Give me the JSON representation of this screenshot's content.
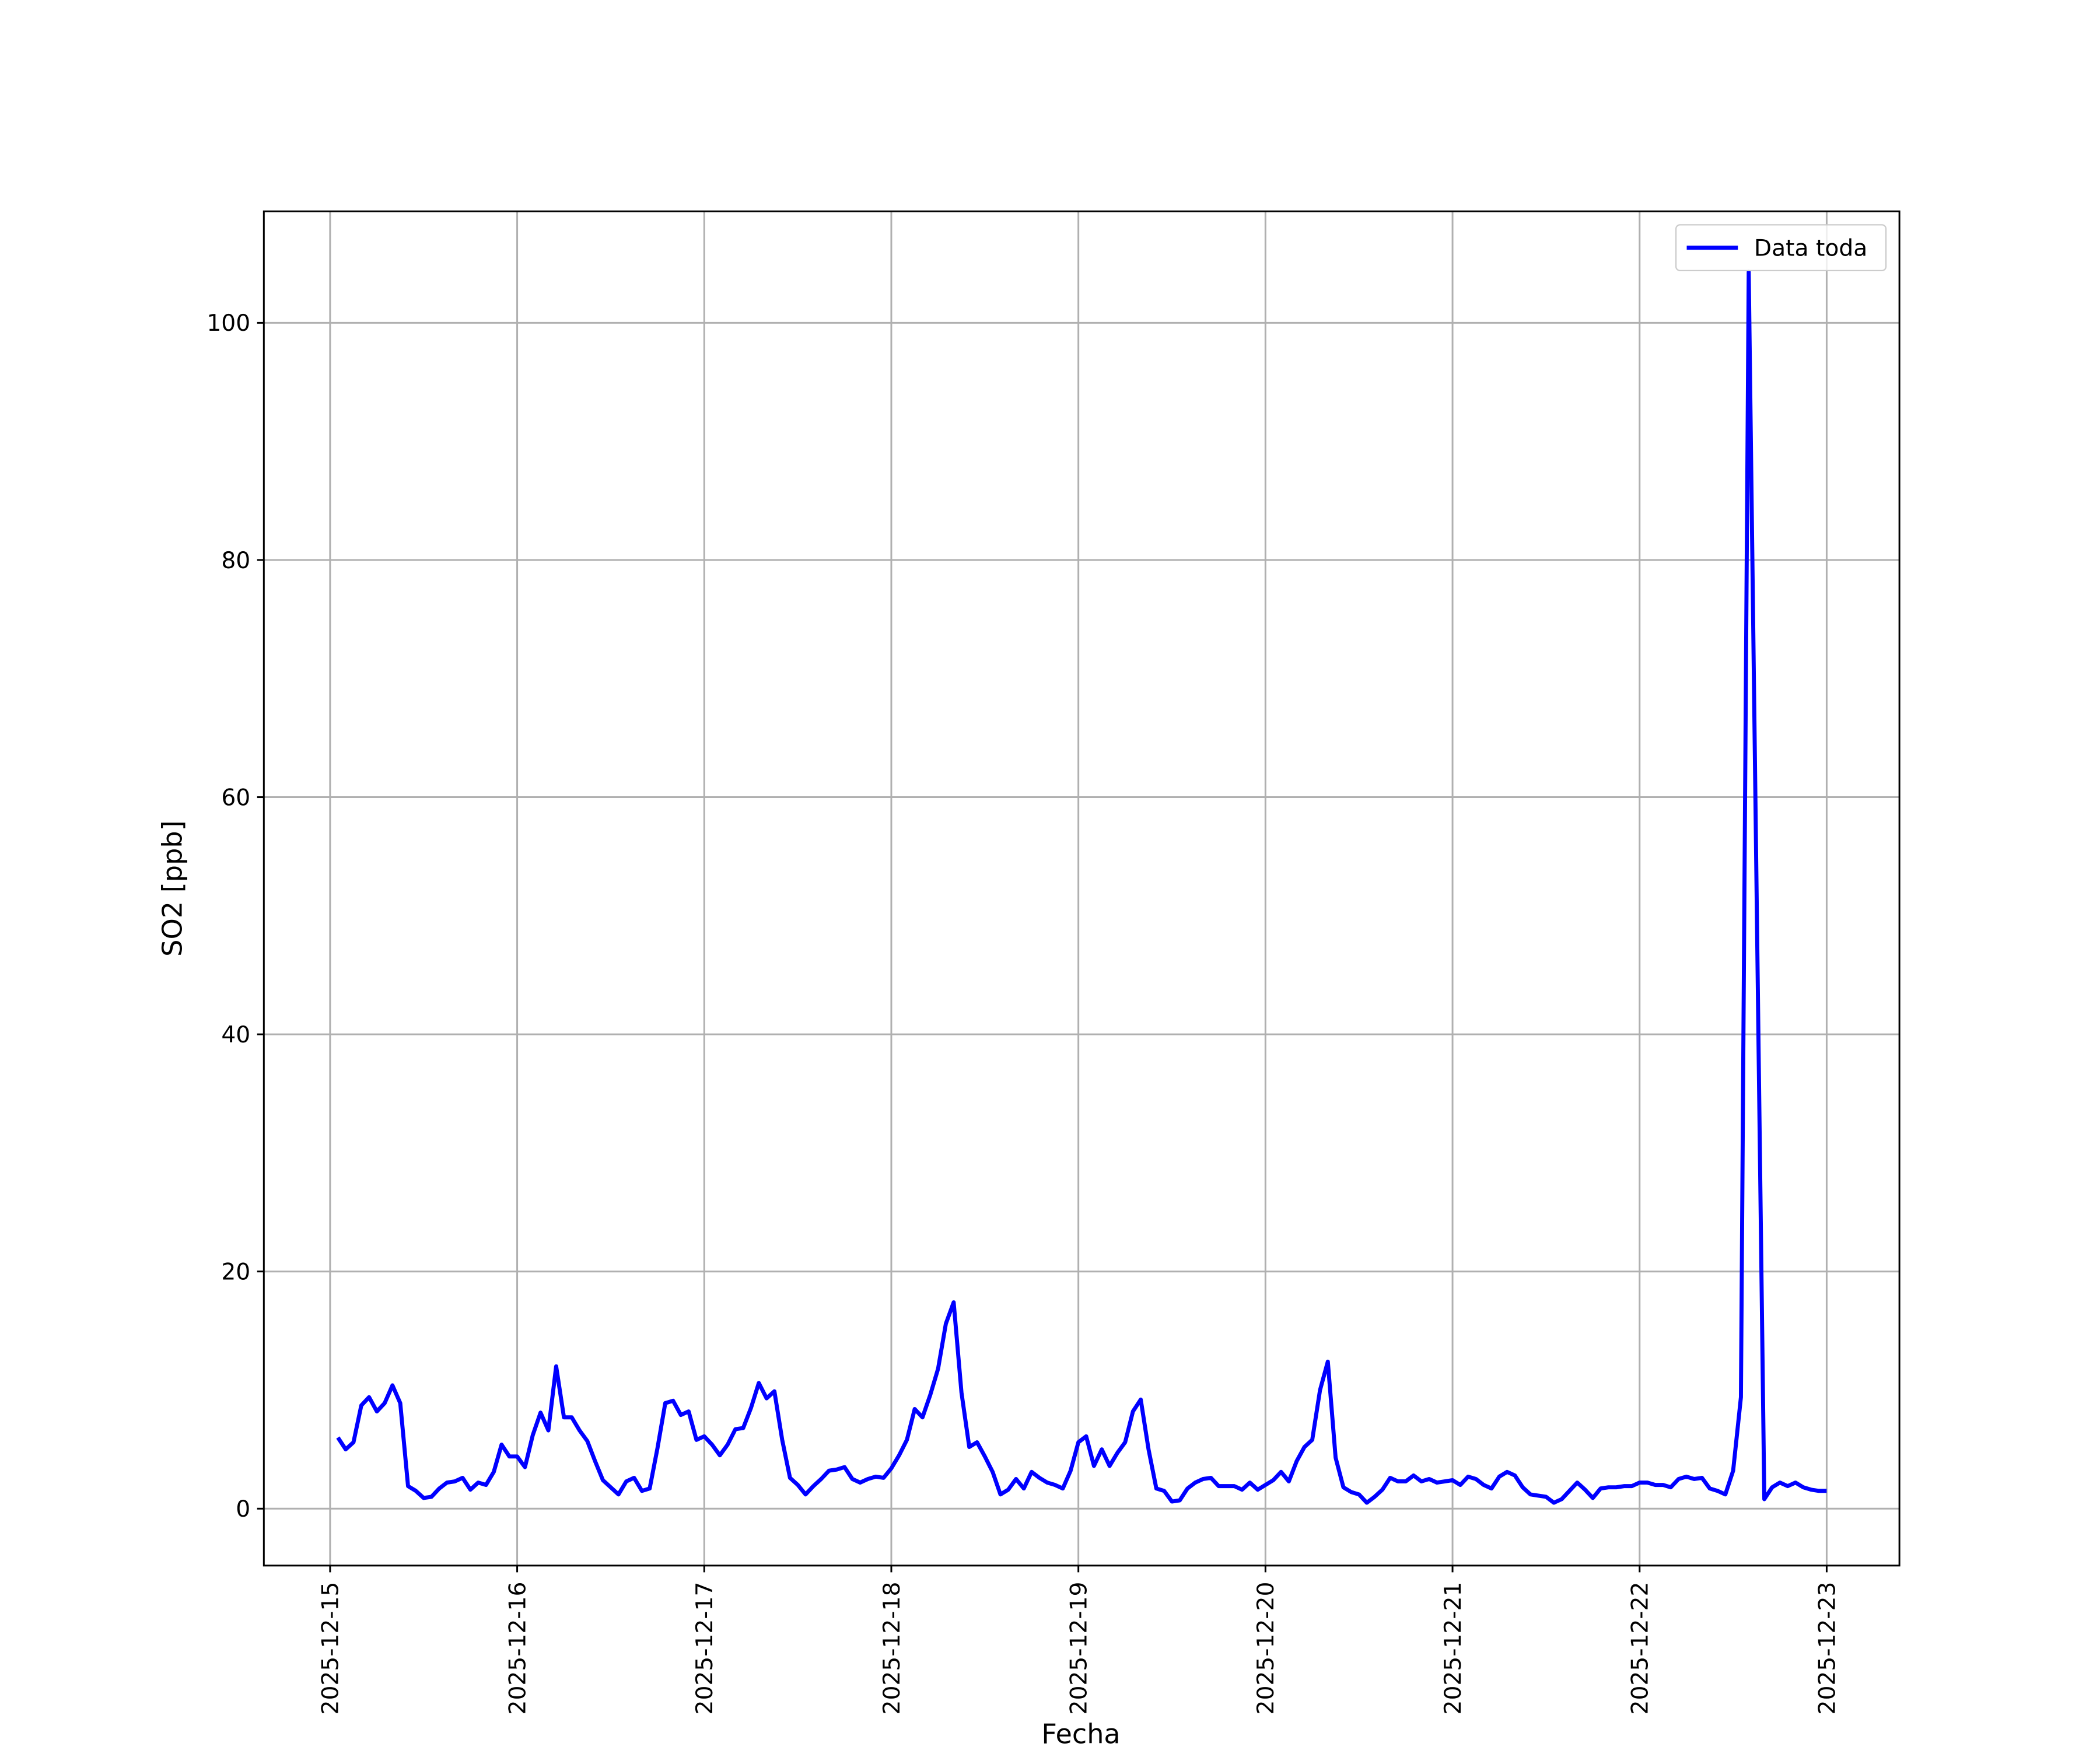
{
  "chart_data": {
    "type": "line",
    "xlabel": "Fecha",
    "ylabel": "SO2 [ppb]",
    "xlim": [
      "2025-12-14 15:30",
      "2025-12-23 09:20"
    ],
    "xticks": [
      "2025-12-15",
      "2025-12-16",
      "2025-12-17",
      "2025-12-18",
      "2025-12-19",
      "2025-12-20",
      "2025-12-21",
      "2025-12-22",
      "2025-12-23"
    ],
    "ylim": [
      -4.8,
      109.4
    ],
    "yticks": [
      0,
      20,
      40,
      60,
      80,
      100
    ],
    "grid": true,
    "legend": "upper right",
    "x": [
      "2025-12-15 01:00",
      "2025-12-15 02:00",
      "2025-12-15 03:00",
      "2025-12-15 04:00",
      "2025-12-15 05:00",
      "2025-12-15 06:00",
      "2025-12-15 07:00",
      "2025-12-15 08:00",
      "2025-12-15 09:00",
      "2025-12-15 10:00",
      "2025-12-15 11:00",
      "2025-12-15 12:00",
      "2025-12-15 13:00",
      "2025-12-15 14:00",
      "2025-12-15 15:00",
      "2025-12-15 16:00",
      "2025-12-15 17:00",
      "2025-12-15 18:00",
      "2025-12-15 19:00",
      "2025-12-15 20:00",
      "2025-12-15 21:00",
      "2025-12-15 22:00",
      "2025-12-15 23:00",
      "2025-12-16 00:00",
      "2025-12-16 01:00",
      "2025-12-16 02:00",
      "2025-12-16 03:00",
      "2025-12-16 04:00",
      "2025-12-16 05:00",
      "2025-12-16 06:00",
      "2025-12-16 07:00",
      "2025-12-16 08:00",
      "2025-12-16 09:00",
      "2025-12-16 10:00",
      "2025-12-16 11:00",
      "2025-12-16 12:00",
      "2025-12-16 13:00",
      "2025-12-16 14:00",
      "2025-12-16 15:00",
      "2025-12-16 16:00",
      "2025-12-16 17:00",
      "2025-12-16 18:00",
      "2025-12-16 19:00",
      "2025-12-16 20:00",
      "2025-12-16 21:00",
      "2025-12-16 22:00",
      "2025-12-16 23:00",
      "2025-12-17 00:00",
      "2025-12-17 01:00",
      "2025-12-17 02:00",
      "2025-12-17 03:00",
      "2025-12-17 04:00",
      "2025-12-17 05:00",
      "2025-12-17 06:00",
      "2025-12-17 07:00",
      "2025-12-17 08:00",
      "2025-12-17 09:00",
      "2025-12-17 10:00",
      "2025-12-17 11:00",
      "2025-12-17 12:00",
      "2025-12-17 13:00",
      "2025-12-17 14:00",
      "2025-12-17 15:00",
      "2025-12-17 16:00",
      "2025-12-17 17:00",
      "2025-12-17 18:00",
      "2025-12-17 19:00",
      "2025-12-17 20:00",
      "2025-12-17 21:00",
      "2025-12-17 22:00",
      "2025-12-17 23:00",
      "2025-12-18 00:00",
      "2025-12-18 01:00",
      "2025-12-18 02:00",
      "2025-12-18 03:00",
      "2025-12-18 04:00",
      "2025-12-18 05:00",
      "2025-12-18 06:00",
      "2025-12-18 07:00",
      "2025-12-18 08:00",
      "2025-12-18 09:00",
      "2025-12-18 10:00",
      "2025-12-18 11:00",
      "2025-12-18 12:00",
      "2025-12-18 13:00",
      "2025-12-18 14:00",
      "2025-12-18 15:00",
      "2025-12-18 16:00",
      "2025-12-18 17:00",
      "2025-12-18 18:00",
      "2025-12-18 19:00",
      "2025-12-18 20:00",
      "2025-12-18 21:00",
      "2025-12-18 22:00",
      "2025-12-18 23:00",
      "2025-12-19 00:00",
      "2025-12-19 01:00",
      "2025-12-19 02:00",
      "2025-12-19 03:00",
      "2025-12-19 04:00",
      "2025-12-19 05:00",
      "2025-12-19 06:00",
      "2025-12-19 07:00",
      "2025-12-19 08:00",
      "2025-12-19 09:00",
      "2025-12-19 10:00",
      "2025-12-19 11:00",
      "2025-12-19 12:00",
      "2025-12-19 13:00",
      "2025-12-19 14:00",
      "2025-12-19 15:00",
      "2025-12-19 16:00",
      "2025-12-19 17:00",
      "2025-12-19 18:00",
      "2025-12-19 19:00",
      "2025-12-19 20:00",
      "2025-12-19 21:00",
      "2025-12-19 22:00",
      "2025-12-19 23:00",
      "2025-12-20 00:00",
      "2025-12-20 01:00",
      "2025-12-20 02:00",
      "2025-12-20 03:00",
      "2025-12-20 04:00",
      "2025-12-20 05:00",
      "2025-12-20 06:00",
      "2025-12-20 07:00",
      "2025-12-20 08:00",
      "2025-12-20 09:00",
      "2025-12-20 10:00",
      "2025-12-20 11:00",
      "2025-12-20 12:00",
      "2025-12-20 13:00",
      "2025-12-20 14:00",
      "2025-12-20 15:00",
      "2025-12-20 16:00",
      "2025-12-20 17:00",
      "2025-12-20 18:00",
      "2025-12-20 19:00",
      "2025-12-20 20:00",
      "2025-12-20 21:00",
      "2025-12-20 22:00",
      "2025-12-20 23:00",
      "2025-12-21 00:00",
      "2025-12-21 01:00",
      "2025-12-21 02:00",
      "2025-12-21 03:00",
      "2025-12-21 04:00",
      "2025-12-21 05:00",
      "2025-12-21 06:00",
      "2025-12-21 07:00",
      "2025-12-21 08:00",
      "2025-12-21 09:00",
      "2025-12-21 10:00",
      "2025-12-21 11:00",
      "2025-12-21 12:00",
      "2025-12-21 13:00",
      "2025-12-21 14:00",
      "2025-12-21 15:00",
      "2025-12-21 16:00",
      "2025-12-21 17:00",
      "2025-12-21 18:00",
      "2025-12-21 19:00",
      "2025-12-21 20:00",
      "2025-12-21 21:00",
      "2025-12-21 22:00",
      "2025-12-21 23:00",
      "2025-12-22 00:00",
      "2025-12-22 01:00",
      "2025-12-22 02:00",
      "2025-12-22 03:00",
      "2025-12-22 04:00",
      "2025-12-22 05:00",
      "2025-12-22 06:00",
      "2025-12-22 07:00",
      "2025-12-22 08:00",
      "2025-12-22 09:00",
      "2025-12-22 10:00",
      "2025-12-22 11:00",
      "2025-12-22 12:00",
      "2025-12-22 13:00",
      "2025-12-22 14:00",
      "2025-12-22 16:00",
      "2025-12-22 17:00",
      "2025-12-22 18:00",
      "2025-12-22 19:00",
      "2025-12-22 20:00",
      "2025-12-22 21:00",
      "2025-12-22 22:00",
      "2025-12-22 23:00",
      "2025-12-23 00:00"
    ],
    "series": [
      {
        "name": "Data toda",
        "color": "#0000ff",
        "values": [
          6.0,
          5.0,
          5.6,
          8.7,
          9.4,
          8.2,
          8.9,
          10.4,
          8.9,
          1.9,
          1.5,
          0.9,
          1.0,
          1.7,
          2.2,
          2.3,
          2.6,
          1.6,
          2.2,
          2.0,
          3.1,
          5.4,
          4.4,
          4.4,
          3.5,
          6.2,
          8.1,
          6.6,
          12.0,
          7.7,
          7.7,
          6.6,
          5.7,
          4.0,
          2.4,
          1.8,
          1.2,
          2.3,
          2.6,
          1.5,
          1.7,
          5.1,
          8.9,
          9.1,
          7.9,
          8.2,
          5.8,
          6.1,
          5.4,
          4.5,
          5.4,
          6.7,
          6.8,
          8.5,
          10.6,
          9.3,
          9.9,
          5.8,
          2.6,
          2.0,
          1.2,
          1.9,
          2.5,
          3.2,
          3.3,
          3.5,
          2.5,
          2.2,
          2.5,
          2.7,
          2.6,
          3.4,
          4.5,
          5.8,
          8.4,
          7.7,
          9.6,
          11.8,
          15.6,
          17.4,
          9.8,
          5.2,
          5.6,
          4.4,
          3.1,
          1.2,
          1.6,
          2.5,
          1.7,
          3.1,
          2.6,
          2.2,
          2.0,
          1.7,
          3.2,
          5.6,
          6.1,
          3.6,
          5.0,
          3.6,
          4.7,
          5.6,
          8.2,
          9.2,
          5.0,
          1.7,
          1.5,
          0.6,
          0.7,
          1.7,
          2.2,
          2.5,
          2.6,
          1.9,
          1.9,
          1.9,
          1.6,
          2.2,
          1.6,
          2.0,
          2.4,
          3.1,
          2.3,
          4.0,
          5.2,
          5.8,
          10.0,
          12.4,
          4.3,
          1.8,
          1.4,
          1.2,
          0.5,
          1.0,
          1.6,
          2.6,
          2.3,
          2.3,
          2.8,
          2.3,
          2.5,
          2.2,
          2.3,
          2.4,
          2.0,
          2.7,
          2.5,
          2.0,
          1.7,
          2.7,
          3.1,
          2.8,
          1.8,
          1.2,
          1.1,
          1.0,
          0.5,
          0.8,
          1.5,
          2.2,
          1.6,
          0.9,
          1.7,
          1.8,
          1.8,
          1.9,
          1.9,
          2.2,
          2.2,
          2.0,
          2.0,
          1.8,
          2.5,
          2.7,
          2.5,
          2.6,
          1.7,
          1.5,
          1.2,
          3.2,
          9.4,
          104.3,
          0.8,
          1.8,
          2.2,
          1.9,
          2.2,
          1.8,
          1.6,
          1.5,
          1.5
        ]
      }
    ]
  }
}
